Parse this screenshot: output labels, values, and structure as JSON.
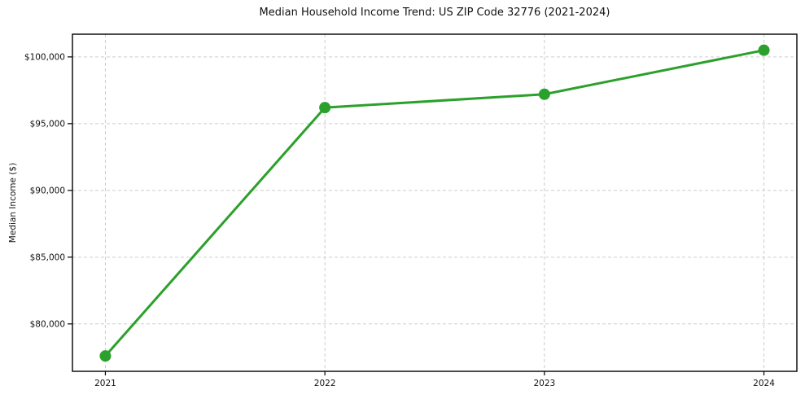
{
  "chart_data": {
    "type": "line",
    "title": "Median Household Income Trend: US ZIP Code 32776 (2021-2024)",
    "ylabel": "Median Income ($)",
    "xlabel": "",
    "x": [
      2021,
      2022,
      2023,
      2024
    ],
    "x_tick_labels": [
      "2021",
      "2022",
      "2023",
      "2024"
    ],
    "values": [
      77600,
      96200,
      97200,
      100500
    ],
    "y_ticks": [
      {
        "value": 80000,
        "label": "$80,000"
      },
      {
        "value": 85000,
        "label": "$85,000"
      },
      {
        "value": 90000,
        "label": "$90,000"
      },
      {
        "value": 95000,
        "label": "$95,000"
      },
      {
        "value": 100000,
        "label": "$100,000"
      }
    ],
    "ylim": [
      76450,
      101700
    ],
    "xlim": [
      2020.85,
      2024.15
    ],
    "line_color": "#2ca02c",
    "marker": "circle",
    "marker_radius": 7,
    "line_width": 3,
    "grid": {
      "visible": true,
      "style": "dashed",
      "color": "#cdcdcd"
    },
    "spine_color": "#000000",
    "background": "#ffffff",
    "legend": {
      "visible": false
    }
  }
}
